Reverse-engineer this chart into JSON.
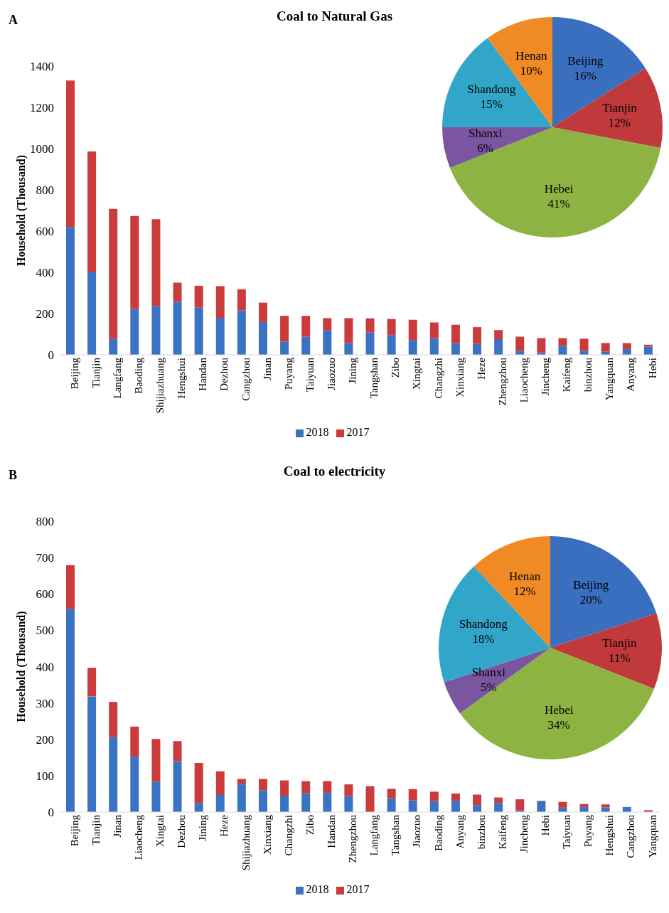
{
  "chart_data": [
    {
      "type": "bar",
      "title": "Coal to Natural Gas",
      "ylabel": "Household (Thousand)",
      "annotations": [
        "A"
      ],
      "stacked": true,
      "legend": "bottom",
      "ylim": [
        0,
        1400
      ],
      "yticks": [
        0,
        200,
        400,
        600,
        800,
        1000,
        1200,
        1400
      ],
      "categories": [
        "Beijing",
        "Tianjin",
        "Langfang",
        "Baoding",
        "Shijiazhuang",
        "Hengshui",
        "Handan",
        "Dezhou",
        "Cangzhou",
        "Jinan",
        "Puyang",
        "Taiyuan",
        "Jiaozuo",
        "Jining",
        "Tangshan",
        "Zibo",
        "Xingtai",
        "Changzhi",
        "Xinxiang",
        "Heze",
        "Zhengzhou",
        "Liaocheng",
        "Jincheng",
        "Kaifeng",
        "binzhou",
        "Yangquan",
        "Anyang",
        "Hebi"
      ],
      "series": [
        {
          "name": "2018",
          "color": "#3b73c4",
          "values": [
            620,
            400,
            77,
            222,
            237,
            257,
            229,
            179,
            216,
            159,
            64,
            88,
            120,
            57,
            108,
            96,
            72,
            81,
            57,
            53,
            76,
            20,
            11,
            44,
            20,
            16,
            28,
            40
          ]
        },
        {
          "name": "2017",
          "color": "#cc3b3b",
          "values": [
            710,
            586,
            631,
            451,
            421,
            93,
            106,
            154,
            102,
            94,
            125,
            101,
            58,
            121,
            69,
            78,
            98,
            76,
            89,
            81,
            44,
            68,
            70,
            37,
            58,
            41,
            29,
            9
          ]
        }
      ]
    },
    {
      "type": "pie",
      "categories": [
        "Beijing",
        "Tianjin",
        "Hebei",
        "Shanxi",
        "Shandong",
        "Henan"
      ],
      "values": [
        16,
        12,
        41,
        6,
        15,
        10
      ],
      "value_labels": [
        "16%",
        "12%",
        "41%",
        "6%",
        "15%",
        "10%"
      ],
      "colors": [
        "#3a6fbf",
        "#c0393b",
        "#8db443",
        "#7a55a0",
        "#31a6c8",
        "#f08a24"
      ]
    },
    {
      "type": "bar",
      "title": "Coal to electricity",
      "ylabel": "Household (Thousand)",
      "annotations": [
        "B"
      ],
      "stacked": true,
      "legend": "bottom",
      "ylim": [
        0,
        800
      ],
      "yticks": [
        0,
        100,
        200,
        300,
        400,
        500,
        600,
        700,
        800
      ],
      "categories": [
        "Beijing",
        "Tianjin",
        "Jinan",
        "Liaocheng",
        "Xingtai",
        "Dezhou",
        "Jining",
        "Heze",
        "Shijiazhuang",
        "Xinxiang",
        "Changzhi",
        "Zibo",
        "Handan",
        "Zhengzhou",
        "Langfang",
        "Tangshan",
        "Jiaozuo",
        "Baoding",
        "Anyang",
        "binzhou",
        "Kaifeng",
        "Jincheng",
        "Hebi",
        "Taiyuan",
        "Puyang",
        "Hengshui",
        "Cangzhou",
        "Yangquan"
      ],
      "series": [
        {
          "name": "2018",
          "color": "#3b73c4",
          "values": [
            559,
            318,
            206,
            152,
            83,
            140,
            25,
            47,
            76,
            60,
            45,
            52,
            53,
            44,
            0,
            38,
            32,
            30,
            31,
            19,
            25,
            5,
            30,
            12,
            14,
            13,
            14,
            null
          ]
        },
        {
          "name": "2017",
          "color": "#cc3b3b",
          "values": [
            120,
            79,
            97,
            83,
            118,
            55,
            110,
            65,
            15,
            31,
            42,
            33,
            32,
            32,
            71,
            26,
            31,
            26,
            20,
            29,
            15,
            30,
            1,
            16,
            8,
            8,
            0,
            5
          ]
        }
      ]
    },
    {
      "type": "pie",
      "categories": [
        "Beijing",
        "Tianjin",
        "Hebei",
        "Shanxi",
        "Shandong",
        "Henan"
      ],
      "values": [
        20,
        11,
        34,
        5,
        18,
        12
      ],
      "value_labels": [
        "20%",
        "11%",
        "34%",
        "5%",
        "18%",
        "12%"
      ],
      "colors": [
        "#3a6fbf",
        "#c0393b",
        "#8db443",
        "#7a55a0",
        "#31a6c8",
        "#f08a24"
      ]
    }
  ]
}
